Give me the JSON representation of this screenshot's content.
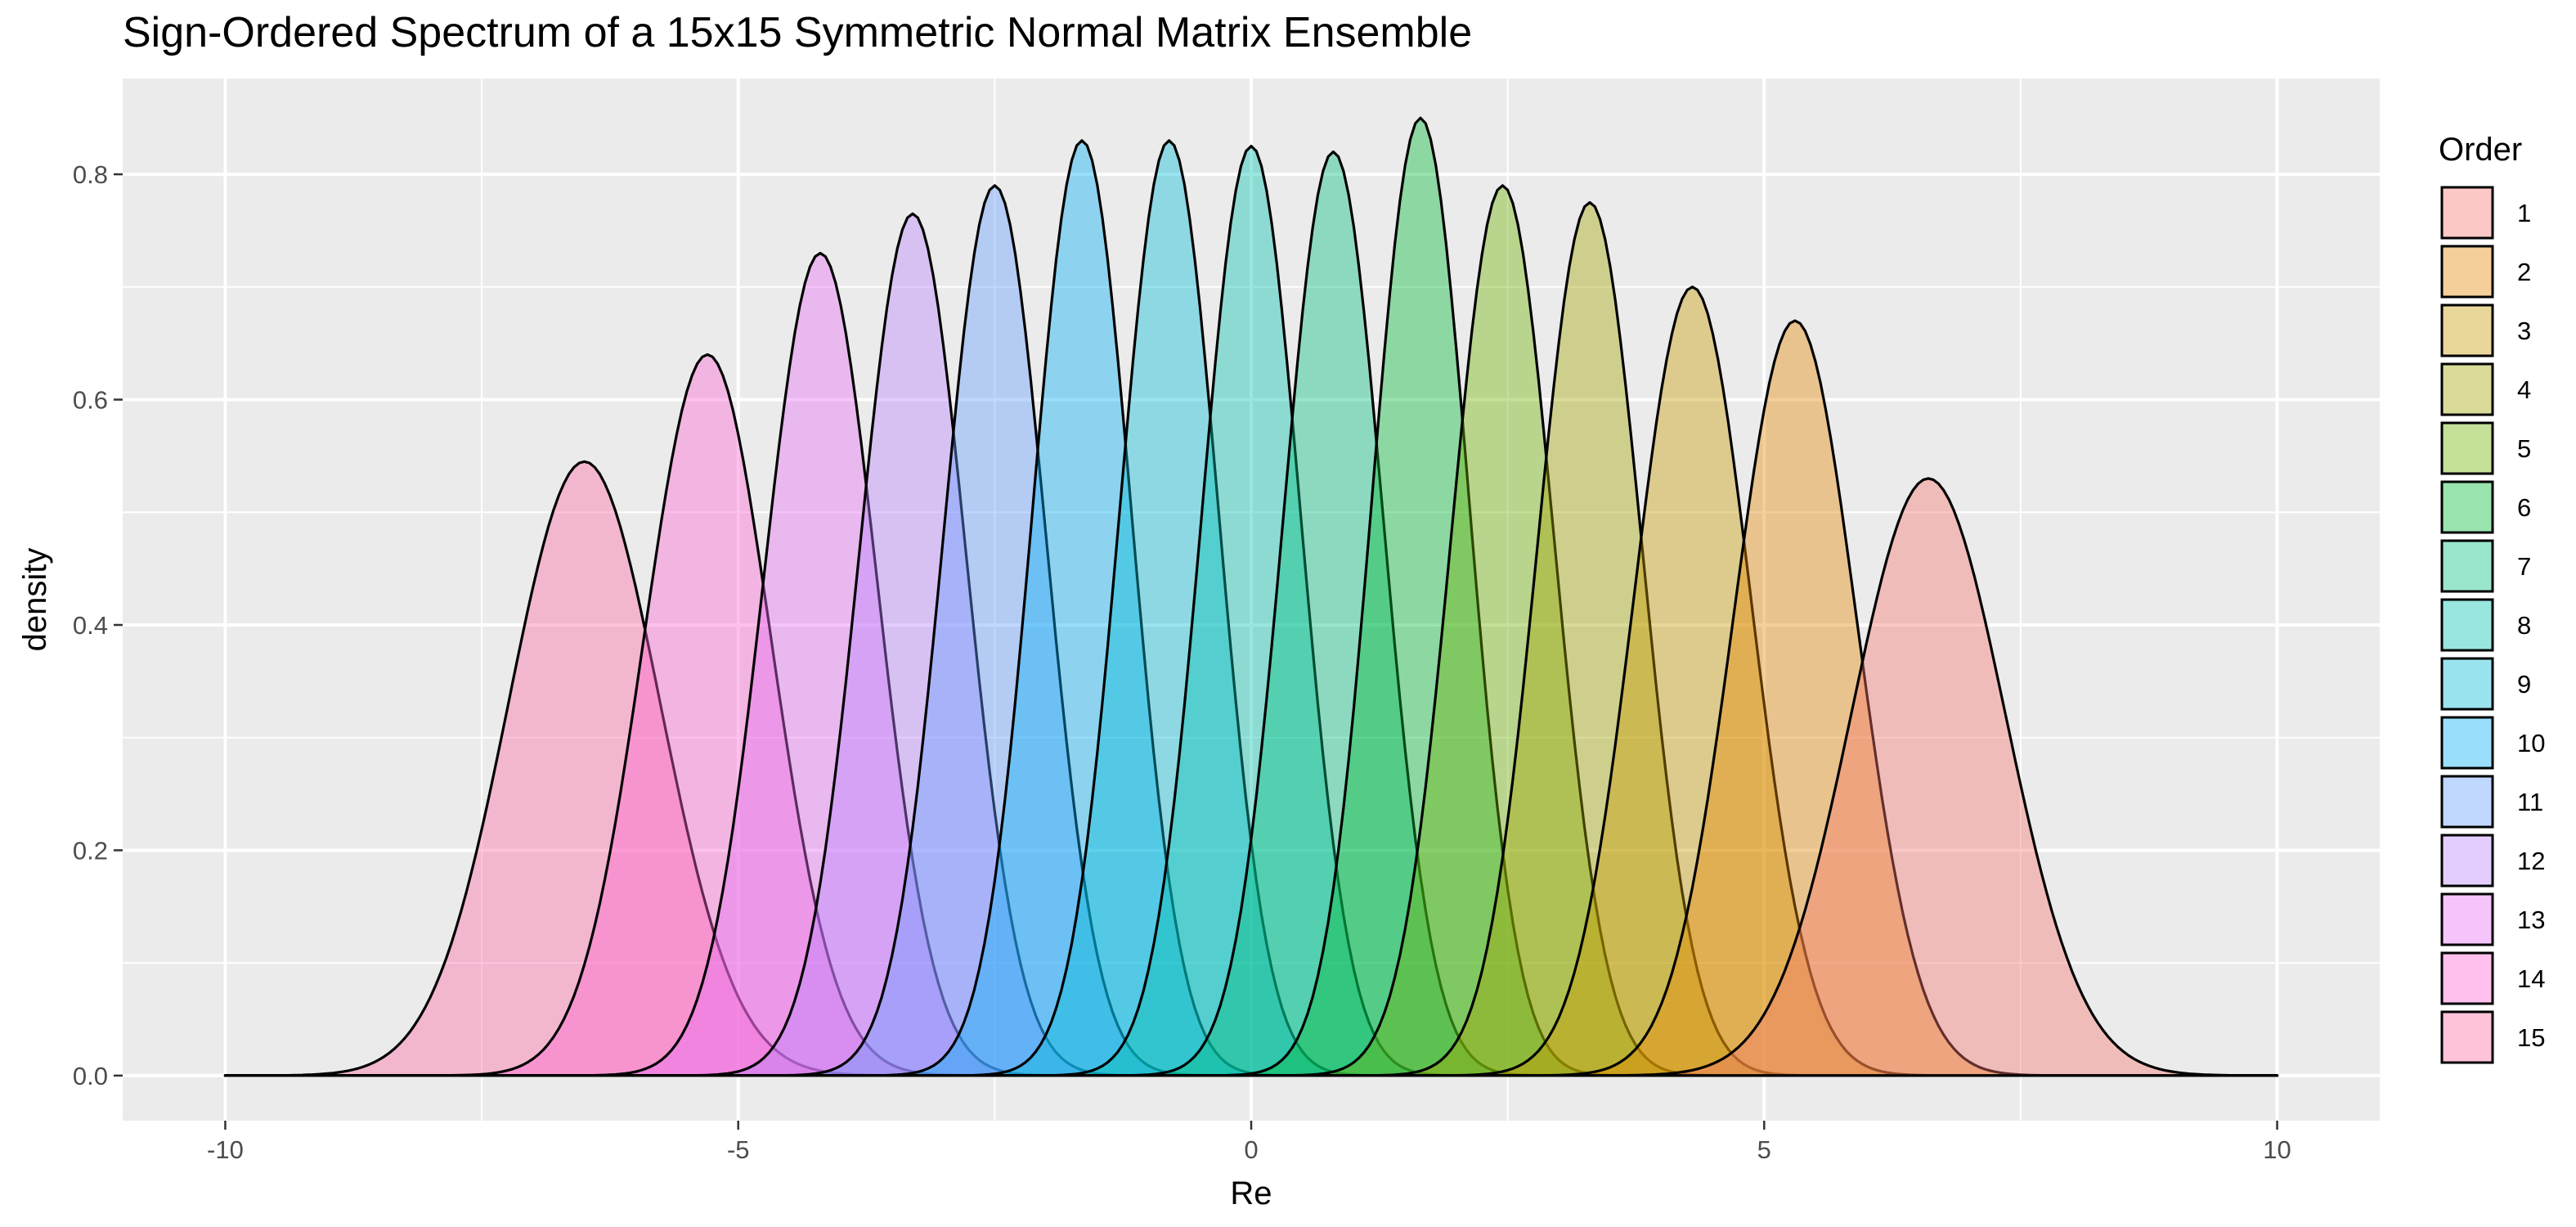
{
  "chart_data": {
    "type": "area",
    "title": "Sign-Ordered Spectrum of a 15x15 Symmetric Normal Matrix Ensemble",
    "xlabel": "Re",
    "ylabel": "density",
    "xlim": [
      -10,
      10
    ],
    "ylim": [
      0,
      0.85
    ],
    "x_ticks": [
      -10,
      -5,
      0,
      5,
      10
    ],
    "x_tick_labels": [
      "-10",
      "-5",
      "0",
      "5",
      "10"
    ],
    "y_ticks": [
      0.0,
      0.2,
      0.4,
      0.6,
      0.8
    ],
    "y_tick_labels": [
      "0.0",
      "0.2",
      "0.4",
      "0.6",
      "0.8"
    ],
    "grid": true,
    "legend": {
      "title": "Order",
      "position": "right"
    },
    "series": [
      {
        "name": "1",
        "peak_x": 6.6,
        "peak_density": 0.53,
        "sd": 0.75,
        "color": "#F8766D"
      },
      {
        "name": "2",
        "peak_x": 5.3,
        "peak_density": 0.67,
        "sd": 0.6,
        "color": "#E58700"
      },
      {
        "name": "3",
        "peak_x": 4.3,
        "peak_density": 0.7,
        "sd": 0.57,
        "color": "#C99800"
      },
      {
        "name": "4",
        "peak_x": 3.3,
        "peak_density": 0.775,
        "sd": 0.51,
        "color": "#A3A500"
      },
      {
        "name": "5",
        "peak_x": 2.45,
        "peak_density": 0.79,
        "sd": 0.5,
        "color": "#6BB100"
      },
      {
        "name": "6",
        "peak_x": 1.65,
        "peak_density": 0.85,
        "sd": 0.47,
        "color": "#00BA38"
      },
      {
        "name": "7",
        "peak_x": 0.8,
        "peak_density": 0.82,
        "sd": 0.485,
        "color": "#00BF7D"
      },
      {
        "name": "8",
        "peak_x": 0.0,
        "peak_density": 0.825,
        "sd": 0.48,
        "color": "#00C0AF"
      },
      {
        "name": "9",
        "peak_x": -0.8,
        "peak_density": 0.83,
        "sd": 0.48,
        "color": "#00BCD8"
      },
      {
        "name": "10",
        "peak_x": -1.65,
        "peak_density": 0.83,
        "sd": 0.48,
        "color": "#00B0F6"
      },
      {
        "name": "11",
        "peak_x": -2.5,
        "peak_density": 0.79,
        "sd": 0.5,
        "color": "#619CFF"
      },
      {
        "name": "12",
        "peak_x": -3.3,
        "peak_density": 0.765,
        "sd": 0.52,
        "color": "#B983FF"
      },
      {
        "name": "13",
        "peak_x": -4.2,
        "peak_density": 0.73,
        "sd": 0.55,
        "color": "#E76BF3"
      },
      {
        "name": "14",
        "peak_x": -5.3,
        "peak_density": 0.64,
        "sd": 0.62,
        "color": "#FD61D1"
      },
      {
        "name": "15",
        "peak_x": -6.5,
        "peak_density": 0.545,
        "sd": 0.74,
        "color": "#FF67A4"
      }
    ],
    "panel_color": "#EBEBEB",
    "fill_opacity": 0.4
  }
}
